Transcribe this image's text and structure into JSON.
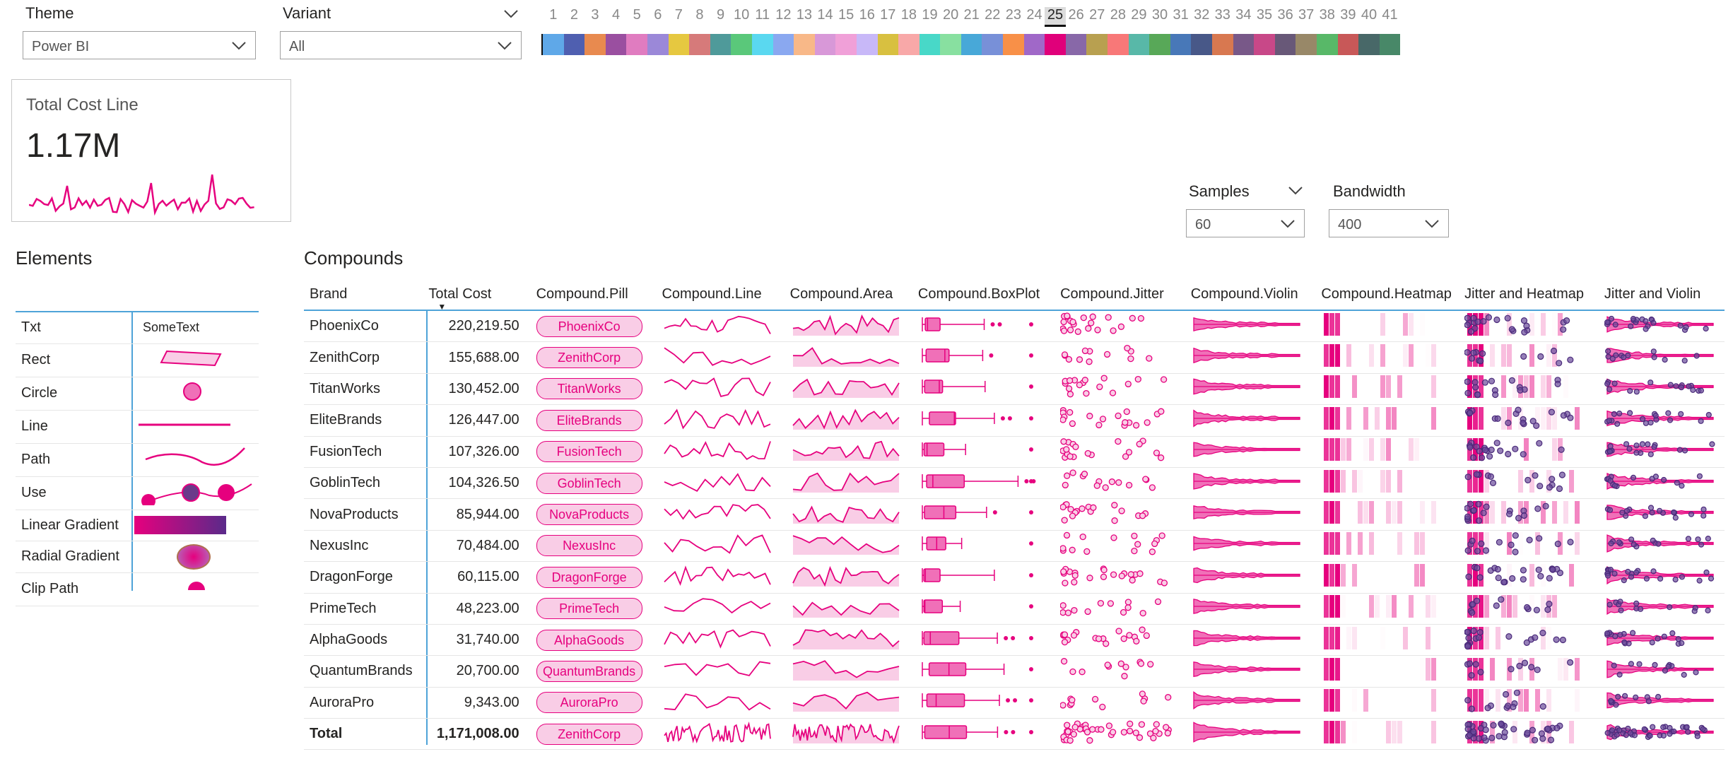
{
  "filters": {
    "theme": {
      "label": "Theme",
      "value": "Power BI"
    },
    "variant": {
      "label": "Variant",
      "value": "All"
    },
    "samples": {
      "label": "Samples",
      "value": "60"
    },
    "bandwidth": {
      "label": "Bandwidth",
      "value": "400"
    }
  },
  "palette": {
    "numbers": [
      "1",
      "2",
      "3",
      "4",
      "5",
      "6",
      "7",
      "8",
      "9",
      "10",
      "11",
      "12",
      "13",
      "14",
      "15",
      "16",
      "17",
      "18",
      "19",
      "20",
      "21",
      "22",
      "23",
      "24",
      "25",
      "26",
      "27",
      "28",
      "29",
      "30",
      "31",
      "32",
      "33",
      "34",
      "35",
      "36",
      "37",
      "38",
      "39",
      "40",
      "41"
    ],
    "selected": "25",
    "colors": [
      "#5fa8e8",
      "#4f5fb0",
      "#e88a4f",
      "#9a4fa0",
      "#e07cc0",
      "#9b88d8",
      "#e6c840",
      "#d67a7a",
      "#4f9a9a",
      "#5ac87a",
      "#5ad8f0",
      "#8aa8f0",
      "#f8b888",
      "#d898d8",
      "#f0a0d8",
      "#c8b8f8",
      "#d8c040",
      "#f8a8a8",
      "#48d8c8",
      "#88e0a0",
      "#48a8d8",
      "#7890d8",
      "#f89048",
      "#a068c8",
      "#e0007a",
      "#8868a8",
      "#b8a050",
      "#f87878",
      "#58b8a8",
      "#58a858",
      "#4878b8",
      "#485888",
      "#d87850",
      "#785888",
      "#c84888",
      "#685878",
      "#988868",
      "#58b868",
      "#c85858",
      "#486868",
      "#488868"
    ]
  },
  "card": {
    "title": "Total Cost Line",
    "value": "1.17M"
  },
  "elements": {
    "heading": "Elements",
    "rows": [
      {
        "label": "Txt",
        "sample": "SomeText"
      },
      {
        "label": "Rect"
      },
      {
        "label": "Circle"
      },
      {
        "label": "Line"
      },
      {
        "label": "Path"
      },
      {
        "label": "Use"
      },
      {
        "label": "Linear Gradient"
      },
      {
        "label": "Radial Gradient"
      },
      {
        "label": "Clip Path"
      }
    ]
  },
  "compounds": {
    "heading": "Compounds",
    "columns": [
      "Brand",
      "Total Cost",
      "Compound.Pill",
      "Compound.Line",
      "Compound.Area",
      "Compound.BoxPlot",
      "Compound.Jitter",
      "Compound.Violin",
      "Compound.Heatmap",
      "Jitter and Heatmap",
      "Jitter and Violin"
    ],
    "rows": [
      {
        "brand": "PhoenixCo",
        "cost": "220,219.50",
        "pill": "PhoenixCo"
      },
      {
        "brand": "ZenithCorp",
        "cost": "155,688.00",
        "pill": "ZenithCorp"
      },
      {
        "brand": "TitanWorks",
        "cost": "130,452.00",
        "pill": "TitanWorks"
      },
      {
        "brand": "EliteBrands",
        "cost": "126,447.00",
        "pill": "EliteBrands"
      },
      {
        "brand": "FusionTech",
        "cost": "107,326.00",
        "pill": "FusionTech"
      },
      {
        "brand": "GoblinTech",
        "cost": "104,326.50",
        "pill": "GoblinTech"
      },
      {
        "brand": "NovaProducts",
        "cost": "85,944.00",
        "pill": "NovaProducts"
      },
      {
        "brand": "NexusInc",
        "cost": "70,484.00",
        "pill": "NexusInc"
      },
      {
        "brand": "DragonForge",
        "cost": "60,115.00",
        "pill": "DragonForge"
      },
      {
        "brand": "PrimeTech",
        "cost": "48,223.00",
        "pill": "PrimeTech"
      },
      {
        "brand": "AlphaGoods",
        "cost": "31,740.00",
        "pill": "AlphaGoods"
      },
      {
        "brand": "QuantumBrands",
        "cost": "20,700.00",
        "pill": "QuantumBrands"
      },
      {
        "brand": "AuroraPro",
        "cost": "9,343.00",
        "pill": "AuroraPro"
      }
    ],
    "total": {
      "brand": "Total",
      "cost": "1,171,008.00",
      "pill": "ZenithCorp"
    }
  },
  "accent": "#e6007e"
}
